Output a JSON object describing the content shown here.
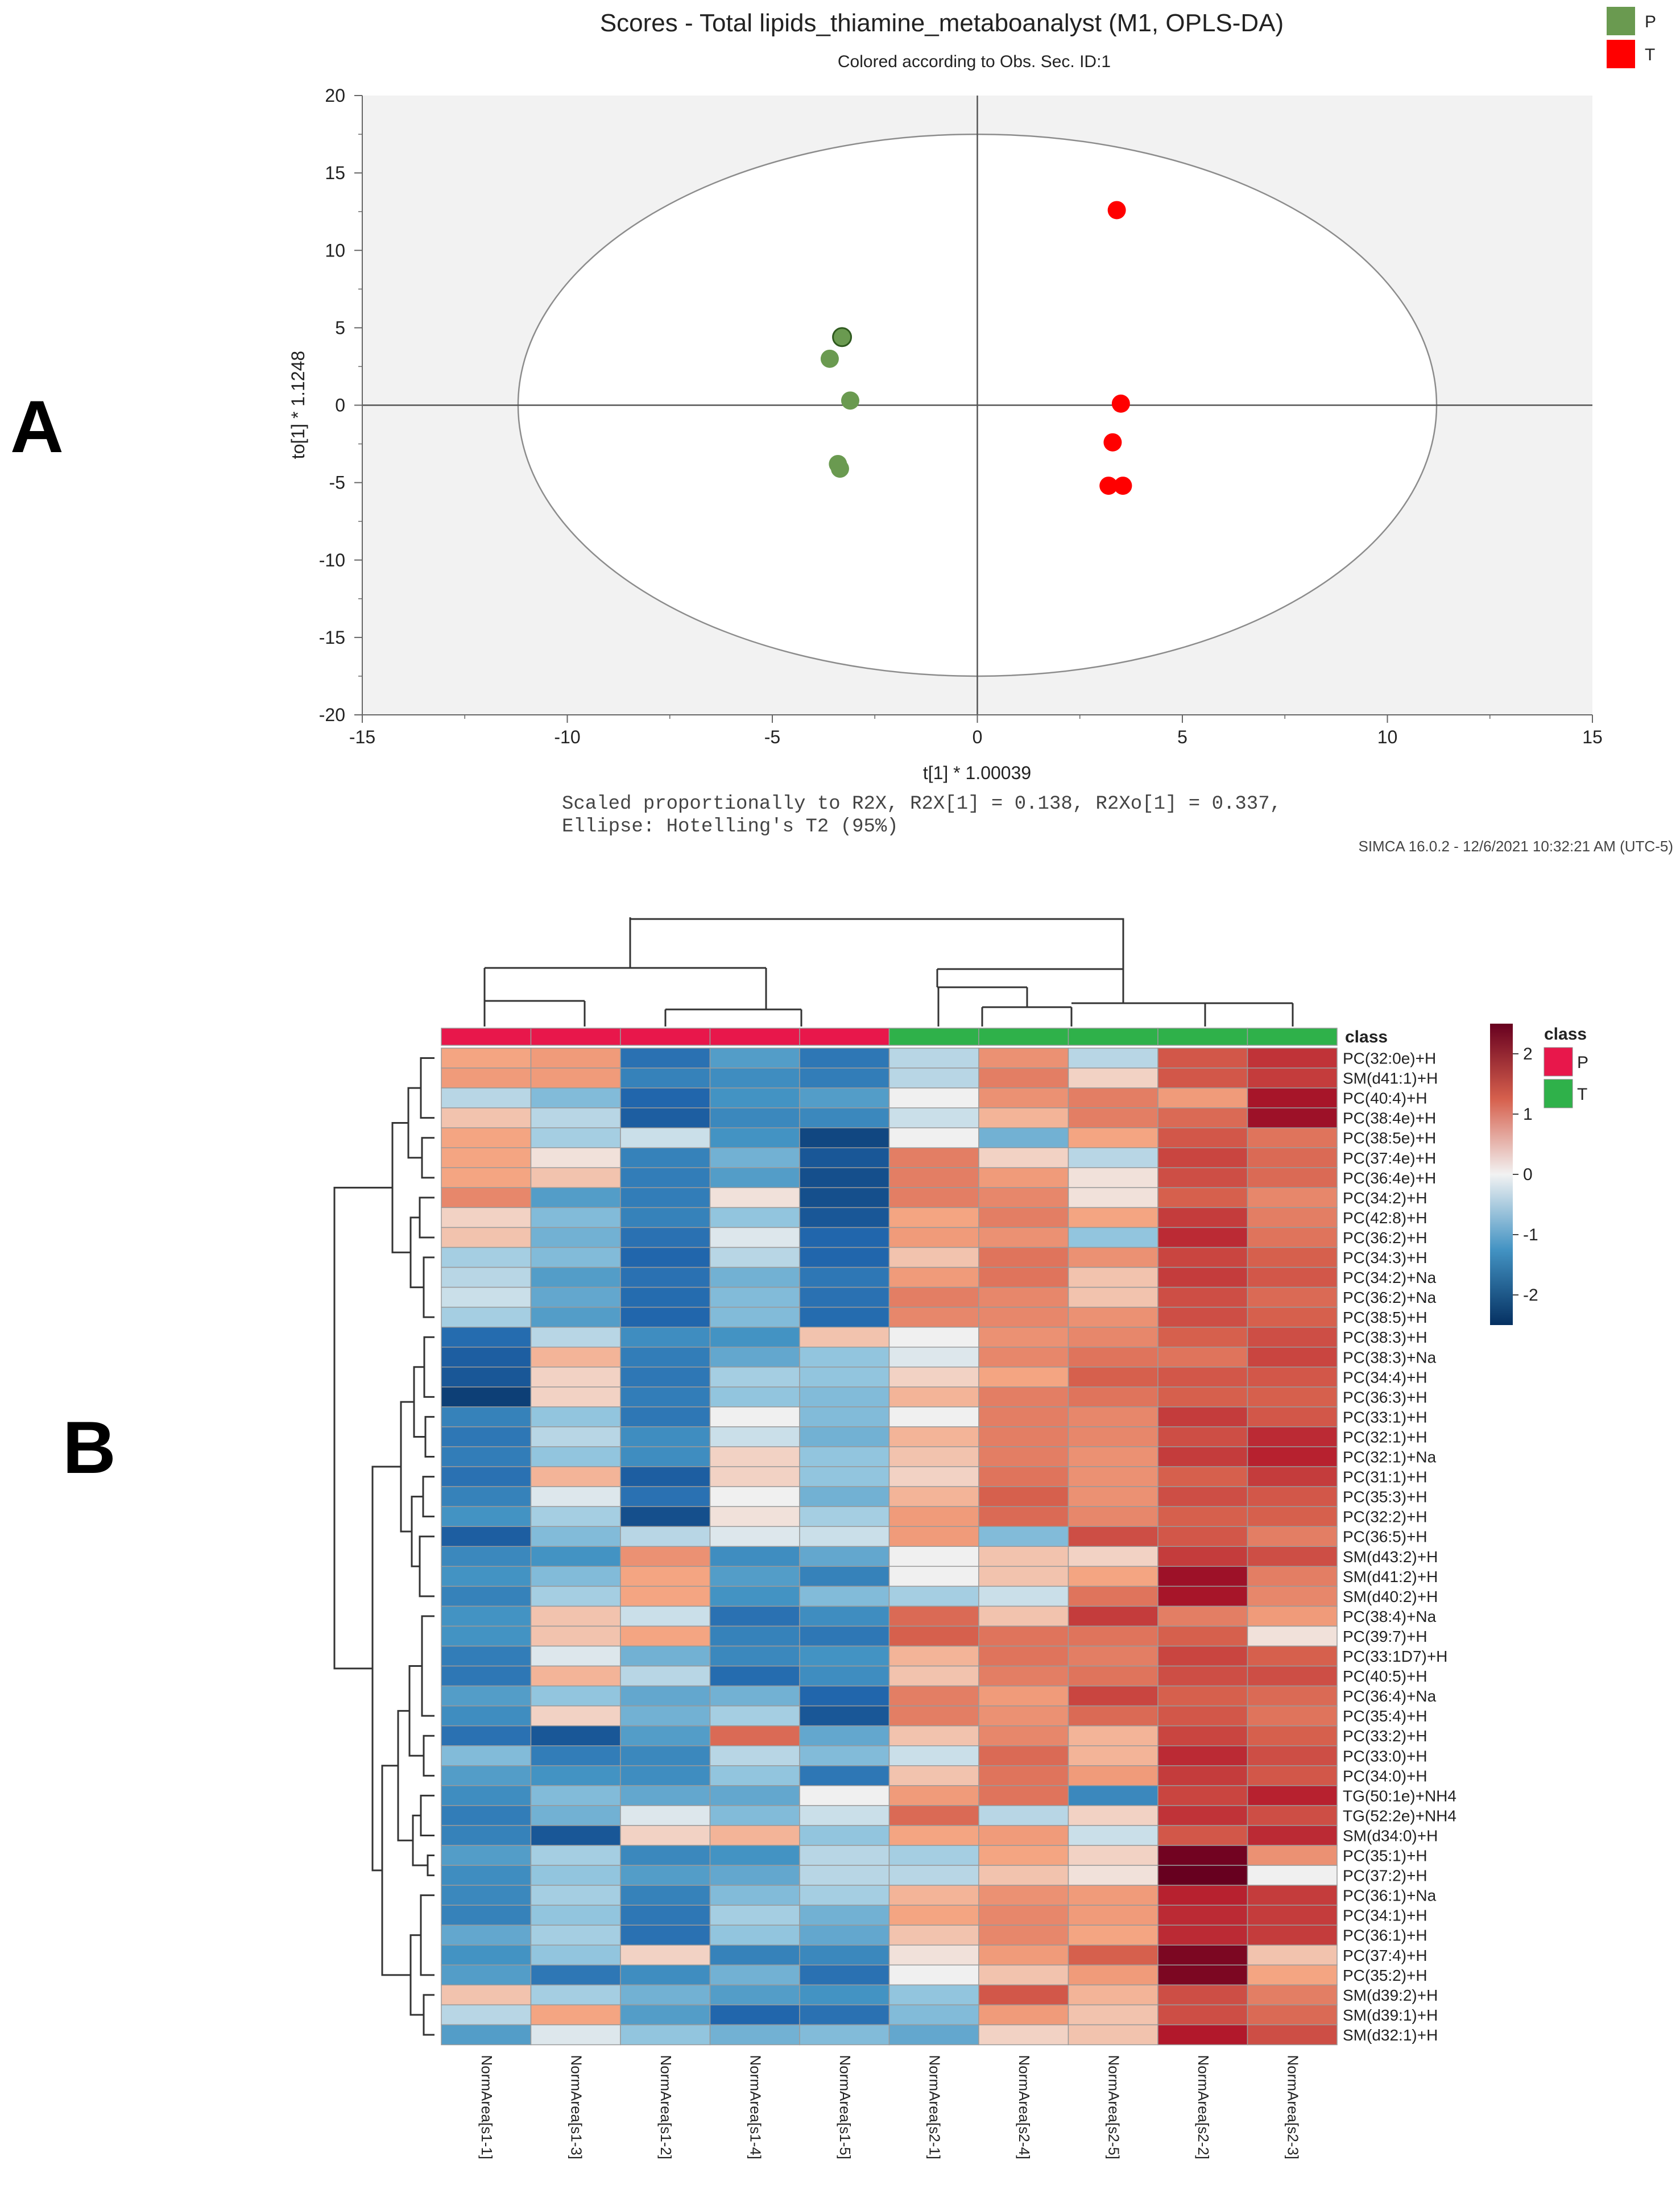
{
  "panels": {
    "a_letter": "A",
    "b_letter": "B"
  },
  "chart_data": [
    {
      "type": "scatter",
      "title": "Scores - Total lipids_thiamine_metaboanalyst (M1, OPLS-DA)",
      "subtitle": "Colored according to Obs. Sec. ID:1",
      "xlabel": "t[1] * 1.00039",
      "ylabel": "to[1] * 1.1248",
      "xlim": [
        -15,
        15
      ],
      "ylim": [
        -20,
        20
      ],
      "xticks": [
        -15,
        -10,
        -5,
        0,
        5,
        10,
        15
      ],
      "yticks": [
        20,
        15,
        10,
        5,
        0,
        -5,
        -10,
        -15,
        -20
      ],
      "note_line1": "Scaled proportionally to R2X, R2X[1] = 0.138, R2Xo[1] = 0.337,",
      "note_line2": "Ellipse: Hotelling's T2 (95%)",
      "stamp": "SIMCA 16.0.2 - 12/6/2021 10:32:21 AM (UTC-5)",
      "ellipse": {
        "a": 11.2,
        "b": 17.5
      },
      "legend": [
        {
          "name": "P",
          "color": "#6a9a50"
        },
        {
          "name": "T",
          "color": "#ff0000"
        }
      ],
      "series": [
        {
          "name": "P",
          "color": "#6a9a50",
          "points": [
            {
              "x": -3.3,
              "y": 4.4,
              "label": "P",
              "side": "right"
            },
            {
              "x": -3.6,
              "y": 3.0,
              "label": "P",
              "side": "left"
            },
            {
              "x": -3.1,
              "y": 0.3,
              "label": "P",
              "side": "right"
            },
            {
              "x": -3.4,
              "y": -3.8,
              "label": "P",
              "side": "left"
            },
            {
              "x": -3.35,
              "y": -4.1,
              "label": "P",
              "side": "right"
            }
          ]
        },
        {
          "name": "T",
          "color": "#ff0000",
          "points": [
            {
              "x": 3.4,
              "y": 12.6,
              "label": "T",
              "side": "right"
            },
            {
              "x": 3.5,
              "y": 0.1,
              "label": "T",
              "side": "right"
            },
            {
              "x": 3.3,
              "y": -2.4,
              "label": "T",
              "side": "right"
            },
            {
              "x": 3.2,
              "y": -5.2,
              "label": "T",
              "side": "left"
            },
            {
              "x": 3.55,
              "y": -5.2,
              "label": "T",
              "side": "right"
            }
          ]
        }
      ]
    },
    {
      "type": "heatmap",
      "class_header": "class",
      "legend_title": "class",
      "legend": [
        {
          "name": "P",
          "color": "#e8174b"
        },
        {
          "name": "T",
          "color": "#2fb14a"
        }
      ],
      "colorbar_ticks": [
        2,
        1,
        0,
        -1,
        -2
      ],
      "colorbar_range": [
        -2.5,
        2.5
      ],
      "columns": [
        "NormArea[s1-1]",
        "NormArea[s1-3]",
        "NormArea[s1-2]",
        "NormArea[s1-4]",
        "NormArea[s1-5]",
        "NormArea[s2-1]",
        "NormArea[s2-4]",
        "NormArea[s2-5]",
        "NormArea[s2-2]",
        "NormArea[s2-3]"
      ],
      "column_class": [
        "P",
        "P",
        "P",
        "P",
        "P",
        "T",
        "T",
        "T",
        "T",
        "T"
      ],
      "rows": [
        "PC(32:0e)+H",
        "SM(d41:1)+H",
        "PC(40:4)+H",
        "PC(38:4e)+H",
        "PC(38:5e)+H",
        "PC(37:4e)+H",
        "PC(36:4e)+H",
        "PC(34:2)+H",
        "PC(42:8)+H",
        "PC(36:2)+H",
        "PC(34:3)+H",
        "PC(34:2)+Na",
        "PC(36:2)+Na",
        "PC(38:5)+H",
        "PC(38:3)+H",
        "PC(38:3)+Na",
        "PC(34:4)+H",
        "PC(36:3)+H",
        "PC(33:1)+H",
        "PC(32:1)+H",
        "PC(32:1)+Na",
        "PC(31:1)+H",
        "PC(35:3)+H",
        "PC(32:2)+H",
        "PC(36:5)+H",
        "SM(d43:2)+H",
        "SM(d41:2)+H",
        "SM(d40:2)+H",
        "PC(38:4)+Na",
        "PC(39:7)+H",
        "PC(33:1D7)+H",
        "PC(40:5)+H",
        "PC(36:4)+Na",
        "PC(35:4)+H",
        "PC(33:2)+H",
        "PC(33:0)+H",
        "PC(34:0)+H",
        "TG(50:1e)+NH4",
        "TG(52:2e)+NH4",
        "SM(d34:0)+H",
        "PC(35:1)+H",
        "PC(37:2)+H",
        "PC(36:1)+Na",
        "PC(34:1)+H",
        "PC(36:1)+H",
        "PC(37:4)+H",
        "PC(35:2)+H",
        "SM(d39:2)+H",
        "SM(d39:1)+H",
        "SM(d32:1)+H"
      ],
      "values": [
        [
          0.5,
          0.6,
          -1.6,
          -0.9,
          -1.5,
          -0.3,
          0.7,
          -0.3,
          1.3,
          1.7
        ],
        [
          0.6,
          0.6,
          -1.3,
          -1.1,
          -1.4,
          -0.3,
          0.9,
          0.2,
          1.3,
          1.6
        ],
        [
          -0.3,
          -0.6,
          -1.8,
          -1.0,
          -0.9,
          0.0,
          0.7,
          0.9,
          0.6,
          2.1
        ],
        [
          0.3,
          -0.3,
          -1.9,
          -1.2,
          -1.2,
          -0.2,
          0.4,
          0.9,
          1.1,
          2.2
        ],
        [
          0.5,
          -0.4,
          -0.2,
          -1.0,
          -2.2,
          0.0,
          -0.7,
          0.5,
          1.3,
          1.0
        ],
        [
          0.5,
          0.1,
          -1.3,
          -0.7,
          -2.0,
          0.9,
          0.2,
          -0.3,
          1.5,
          1.1
        ],
        [
          0.5,
          0.3,
          -1.4,
          -0.9,
          -2.1,
          0.9,
          0.6,
          0.1,
          1.4,
          1.1
        ],
        [
          0.8,
          -0.9,
          -1.4,
          0.1,
          -2.1,
          0.9,
          0.8,
          0.1,
          1.2,
          0.8
        ],
        [
          0.2,
          -0.6,
          -1.3,
          -0.5,
          -2.0,
          0.5,
          0.9,
          0.5,
          1.6,
          0.9
        ],
        [
          0.3,
          -0.7,
          -1.6,
          -0.1,
          -1.8,
          0.6,
          0.7,
          -0.5,
          1.8,
          1.0
        ],
        [
          -0.4,
          -0.6,
          -1.8,
          -0.3,
          -1.8,
          0.3,
          1.0,
          0.7,
          1.5,
          1.2
        ],
        [
          -0.3,
          -0.9,
          -1.6,
          -0.7,
          -1.5,
          0.6,
          1.0,
          0.3,
          1.6,
          1.3
        ],
        [
          -0.2,
          -0.8,
          -1.7,
          -0.6,
          -1.6,
          0.9,
          0.8,
          0.3,
          1.4,
          1.1
        ],
        [
          -0.4,
          -0.9,
          -1.8,
          -0.6,
          -1.7,
          0.8,
          0.8,
          0.7,
          1.4,
          1.2
        ],
        [
          -1.7,
          -0.3,
          -1.1,
          -1.0,
          0.3,
          0.0,
          0.7,
          0.8,
          1.2,
          1.4
        ],
        [
          -1.9,
          0.4,
          -1.4,
          -0.8,
          -0.5,
          -0.1,
          0.8,
          1.0,
          1.0,
          1.5
        ],
        [
          -2.0,
          0.2,
          -1.5,
          -0.4,
          -0.5,
          0.2,
          0.5,
          1.2,
          1.3,
          1.3
        ],
        [
          -2.3,
          0.2,
          -1.4,
          -0.5,
          -0.6,
          0.4,
          0.9,
          1.0,
          1.2,
          1.2
        ],
        [
          -1.3,
          -0.5,
          -1.5,
          0.0,
          -0.6,
          0.0,
          0.9,
          0.8,
          1.6,
          1.3
        ],
        [
          -1.5,
          -0.3,
          -1.1,
          -0.2,
          -0.7,
          0.4,
          0.9,
          0.8,
          1.4,
          1.8
        ],
        [
          -1.4,
          -0.5,
          -1.1,
          0.2,
          -0.5,
          0.3,
          0.9,
          0.7,
          1.6,
          1.9
        ],
        [
          -1.6,
          0.4,
          -1.9,
          0.2,
          -0.5,
          0.2,
          1.0,
          0.7,
          1.2,
          1.6
        ],
        [
          -1.3,
          -0.1,
          -1.6,
          0.0,
          -0.7,
          0.4,
          1.2,
          0.7,
          1.4,
          1.3
        ],
        [
          -1.0,
          -0.4,
          -2.1,
          0.1,
          -0.4,
          0.6,
          1.1,
          0.8,
          1.2,
          1.2
        ],
        [
          -1.9,
          -0.6,
          -0.3,
          -0.1,
          -0.2,
          0.6,
          -0.6,
          1.4,
          1.3,
          0.9
        ],
        [
          -1.2,
          -1.0,
          0.7,
          -1.1,
          -0.8,
          0.0,
          0.3,
          0.2,
          1.6,
          1.4
        ],
        [
          -1.0,
          -0.6,
          0.5,
          -0.9,
          -1.3,
          0.0,
          0.3,
          0.5,
          2.2,
          0.9
        ],
        [
          -1.3,
          -0.4,
          0.5,
          -1.0,
          -0.6,
          -0.4,
          -0.2,
          1.0,
          2.1,
          0.8
        ],
        [
          -1.0,
          0.3,
          -0.2,
          -1.6,
          -1.1,
          1.1,
          0.3,
          1.6,
          0.9,
          0.6
        ],
        [
          -1.0,
          0.3,
          0.5,
          -1.3,
          -1.5,
          1.2,
          1.0,
          1.0,
          1.2,
          0.1
        ],
        [
          -1.4,
          -0.1,
          -0.7,
          -1.2,
          -1.0,
          0.4,
          1.0,
          0.9,
          1.5,
          1.2
        ],
        [
          -1.5,
          0.4,
          -0.3,
          -1.7,
          -1.1,
          0.3,
          0.9,
          1.0,
          1.4,
          1.4
        ],
        [
          -0.9,
          -0.5,
          -0.8,
          -0.7,
          -1.8,
          0.9,
          0.6,
          1.5,
          1.2,
          1.1
        ],
        [
          -1.1,
          0.2,
          -0.7,
          -0.4,
          -2.0,
          0.9,
          0.7,
          1.1,
          1.3,
          1.0
        ],
        [
          -1.6,
          -2.0,
          -0.9,
          1.1,
          -0.8,
          0.3,
          0.8,
          0.4,
          1.5,
          1.2
        ],
        [
          -0.6,
          -1.4,
          -1.2,
          -0.3,
          -0.6,
          -0.2,
          1.1,
          0.4,
          1.8,
          1.4
        ],
        [
          -0.9,
          -1.0,
          -1.1,
          -0.5,
          -1.5,
          0.3,
          1.0,
          0.6,
          1.6,
          1.3
        ],
        [
          -1.1,
          -0.6,
          -0.8,
          -0.8,
          0.0,
          0.6,
          1.0,
          -1.2,
          1.5,
          1.9
        ],
        [
          -1.4,
          -0.7,
          -0.1,
          -0.6,
          -0.2,
          1.1,
          -0.3,
          0.2,
          1.7,
          1.4
        ],
        [
          -1.3,
          -2.0,
          0.2,
          0.4,
          -0.5,
          0.5,
          0.6,
          -0.2,
          1.3,
          1.8
        ],
        [
          -0.9,
          -0.4,
          -1.2,
          -1.0,
          -0.3,
          -0.4,
          0.5,
          0.2,
          2.6,
          0.7
        ],
        [
          -1.1,
          -0.5,
          -0.9,
          -0.8,
          -0.3,
          -0.3,
          0.3,
          0.1,
          2.7,
          0.0
        ],
        [
          -1.2,
          -0.4,
          -1.3,
          -0.6,
          -0.4,
          0.4,
          0.7,
          0.6,
          1.9,
          1.6
        ],
        [
          -1.3,
          -0.5,
          -1.5,
          -0.4,
          -0.7,
          0.5,
          0.8,
          0.6,
          1.8,
          1.6
        ],
        [
          -0.8,
          -0.4,
          -1.6,
          -0.5,
          -0.8,
          0.3,
          0.8,
          0.5,
          1.8,
          1.6
        ],
        [
          -1.0,
          -0.5,
          0.2,
          -1.3,
          -1.2,
          0.1,
          0.6,
          1.2,
          2.5,
          0.3
        ],
        [
          -0.9,
          -1.5,
          -1.1,
          -0.7,
          -1.6,
          0.0,
          0.3,
          0.6,
          2.5,
          0.5
        ],
        [
          0.3,
          -0.4,
          -0.7,
          -0.9,
          -1.0,
          -0.5,
          1.3,
          0.4,
          1.4,
          0.9
        ],
        [
          -0.3,
          0.5,
          -0.9,
          -1.8,
          -1.6,
          -0.6,
          0.6,
          0.3,
          1.4,
          1.1
        ],
        [
          -0.9,
          -0.1,
          -0.5,
          -0.7,
          -0.6,
          -0.8,
          0.2,
          0.3,
          2.0,
          1.4
        ]
      ]
    }
  ]
}
